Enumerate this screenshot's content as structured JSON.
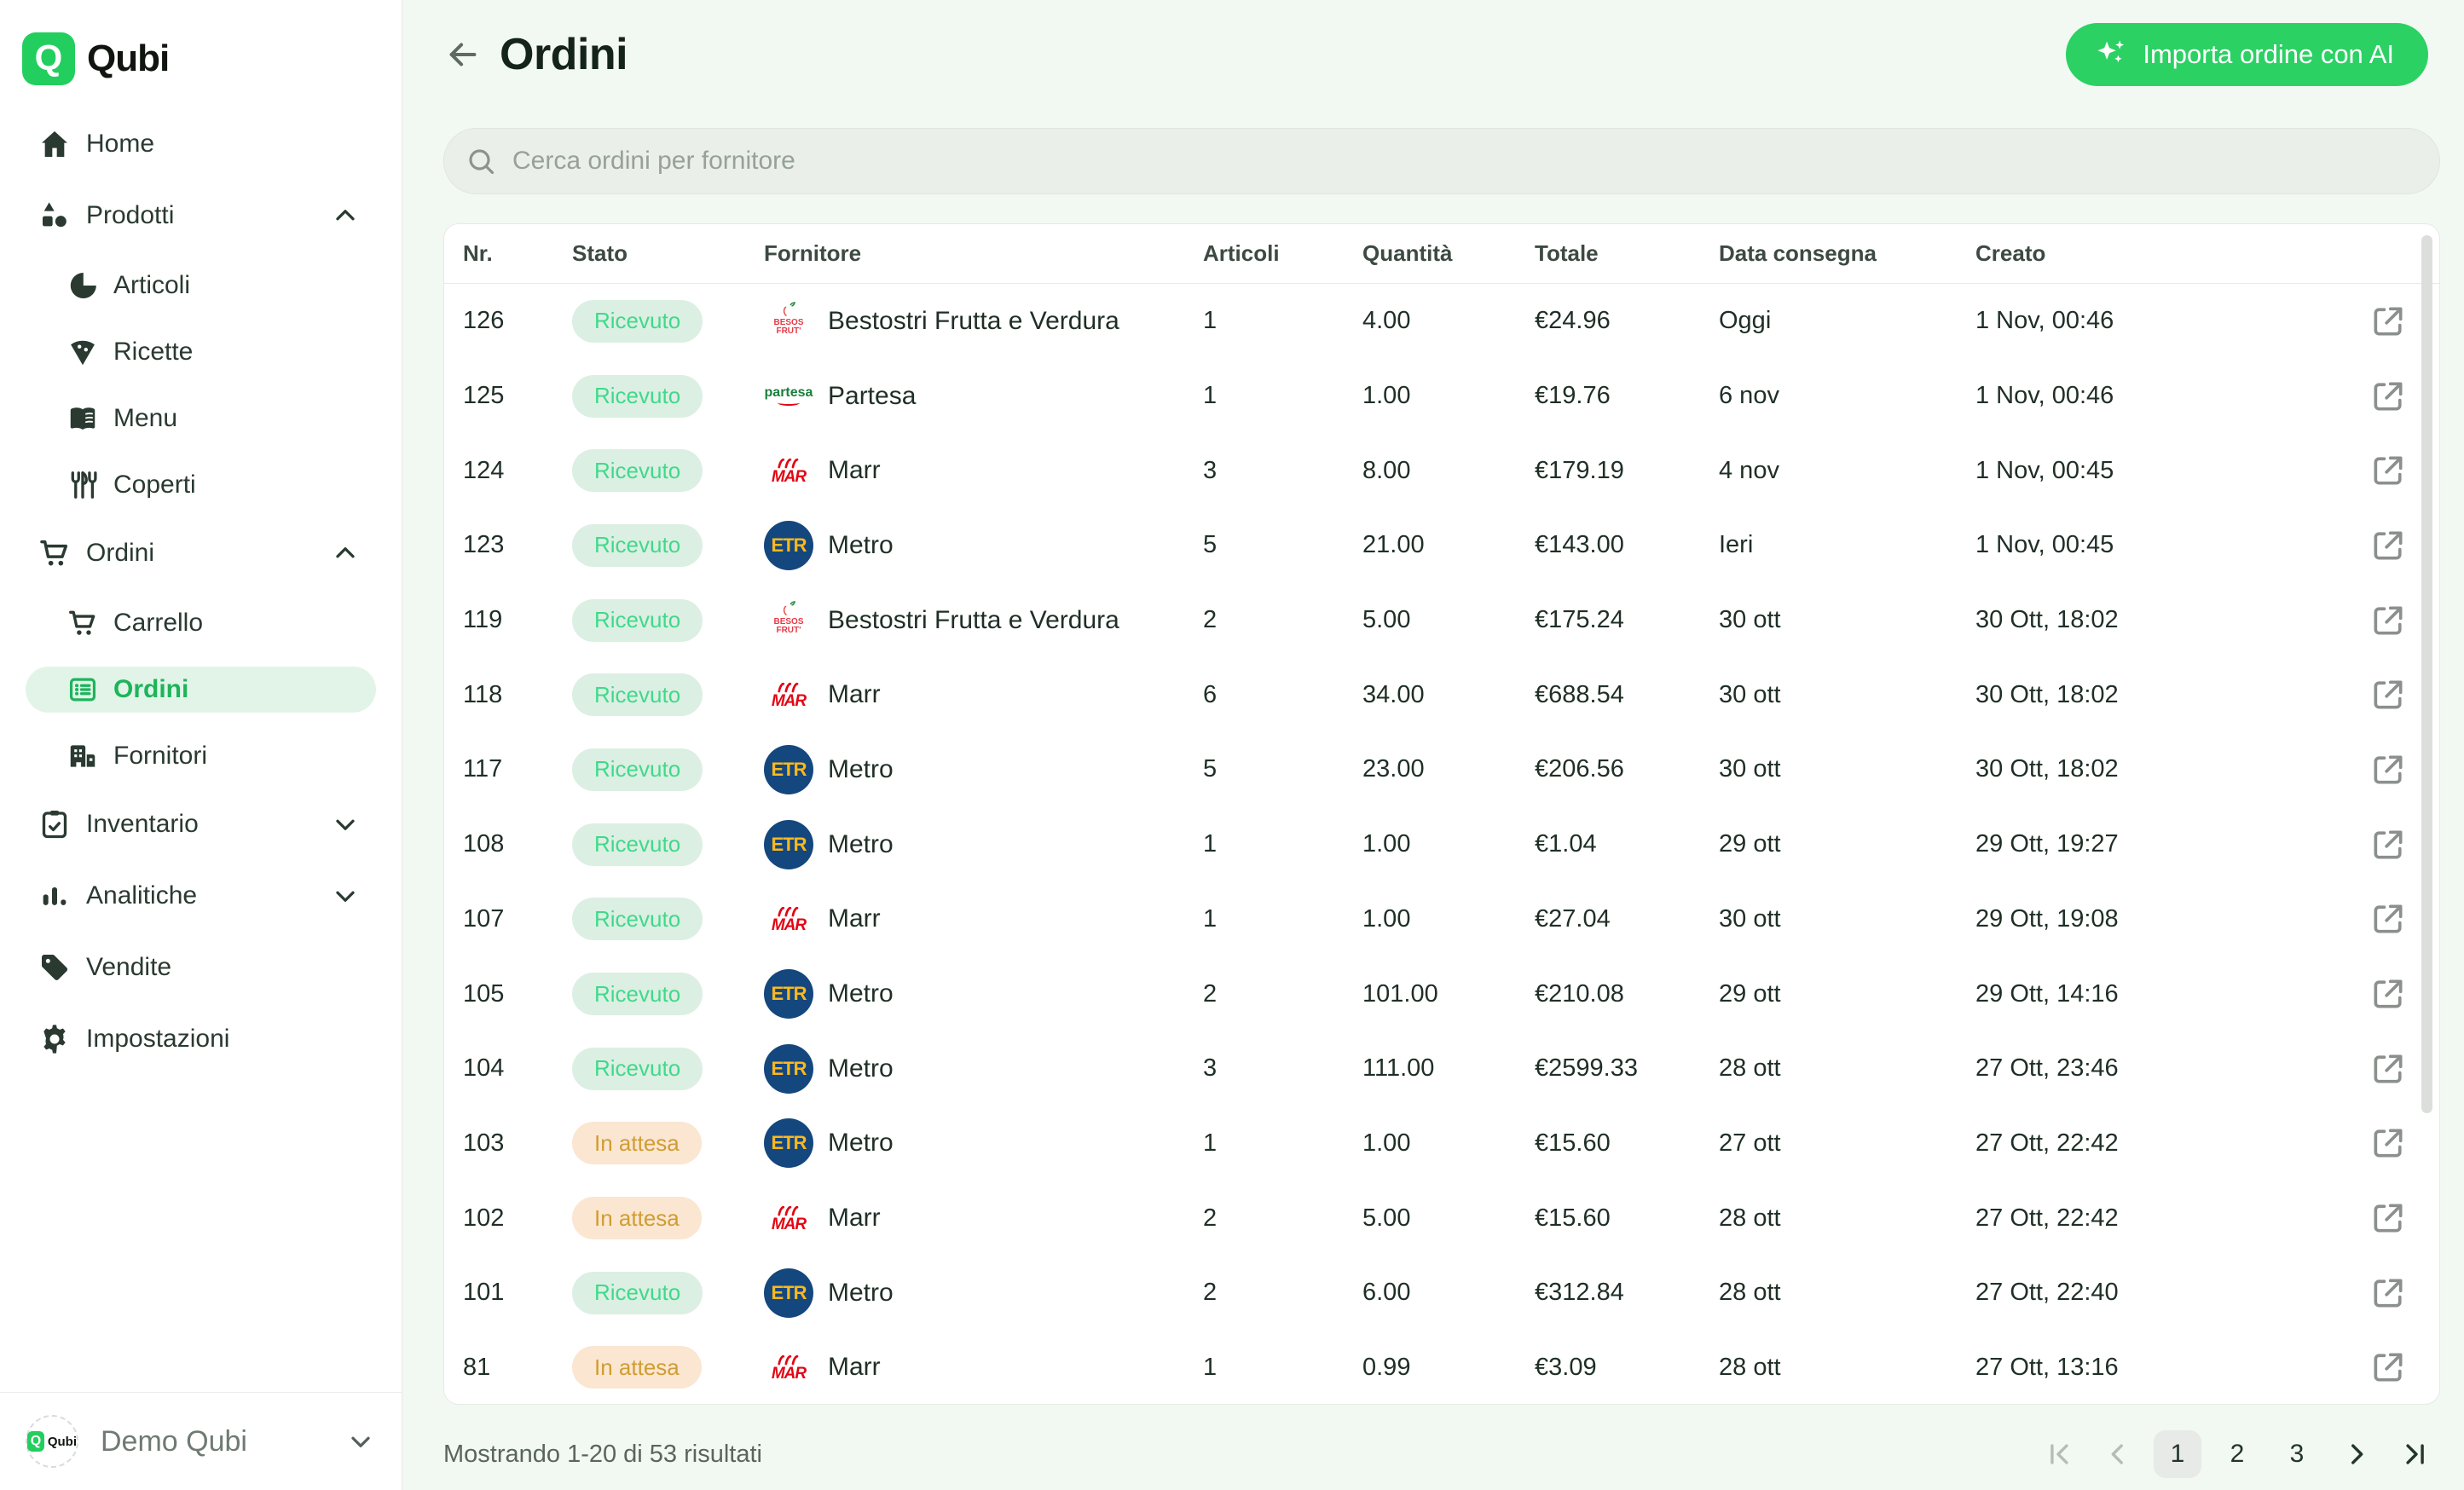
{
  "app": {
    "brand": "Qubi",
    "logo_letter": "Q"
  },
  "sidebar": {
    "items": [
      {
        "label": "Home"
      },
      {
        "label": "Prodotti"
      },
      {
        "label": "Articoli"
      },
      {
        "label": "Ricette"
      },
      {
        "label": "Menu"
      },
      {
        "label": "Coperti"
      },
      {
        "label": "Ordini"
      },
      {
        "label": "Carrello"
      },
      {
        "label": "Ordini"
      },
      {
        "label": "Fornitori"
      },
      {
        "label": "Inventario"
      },
      {
        "label": "Analitiche"
      },
      {
        "label": "Vendite"
      },
      {
        "label": "Impostazioni"
      }
    ],
    "org": {
      "name": "Demo Qubi",
      "logo_text": "Qubi"
    }
  },
  "header": {
    "title": "Ordini",
    "import_button_label": "Importa ordine con AI"
  },
  "search": {
    "placeholder": "Cerca ordini per fornitore"
  },
  "table": {
    "columns": [
      "Nr.",
      "Stato",
      "Fornitore",
      "Articoli",
      "Quantità",
      "Totale",
      "Data consegna",
      "Creato"
    ],
    "rows": [
      {
        "nr": "126",
        "status": "Ricevuto",
        "status_type": "received",
        "supplier": "Bestostri Frutta e Verdura",
        "logo": "bestostri",
        "articles": "1",
        "quantity": "4.00",
        "total": "€24.96",
        "delivery": "Oggi",
        "created": "1 Nov, 00:46"
      },
      {
        "nr": "125",
        "status": "Ricevuto",
        "status_type": "received",
        "supplier": "Partesa",
        "logo": "partesa",
        "articles": "1",
        "quantity": "1.00",
        "total": "€19.76",
        "delivery": "6 nov",
        "created": "1 Nov, 00:46"
      },
      {
        "nr": "124",
        "status": "Ricevuto",
        "status_type": "received",
        "supplier": "Marr",
        "logo": "marr",
        "articles": "3",
        "quantity": "8.00",
        "total": "€179.19",
        "delivery": "4 nov",
        "created": "1 Nov, 00:45"
      },
      {
        "nr": "123",
        "status": "Ricevuto",
        "status_type": "received",
        "supplier": "Metro",
        "logo": "metro",
        "articles": "5",
        "quantity": "21.00",
        "total": "€143.00",
        "delivery": "Ieri",
        "created": "1 Nov, 00:45"
      },
      {
        "nr": "119",
        "status": "Ricevuto",
        "status_type": "received",
        "supplier": "Bestostri Frutta e Verdura",
        "logo": "bestostri",
        "articles": "2",
        "quantity": "5.00",
        "total": "€175.24",
        "delivery": "30 ott",
        "created": "30 Ott, 18:02"
      },
      {
        "nr": "118",
        "status": "Ricevuto",
        "status_type": "received",
        "supplier": "Marr",
        "logo": "marr",
        "articles": "6",
        "quantity": "34.00",
        "total": "€688.54",
        "delivery": "30 ott",
        "created": "30 Ott, 18:02"
      },
      {
        "nr": "117",
        "status": "Ricevuto",
        "status_type": "received",
        "supplier": "Metro",
        "logo": "metro",
        "articles": "5",
        "quantity": "23.00",
        "total": "€206.56",
        "delivery": "30 ott",
        "created": "30 Ott, 18:02"
      },
      {
        "nr": "108",
        "status": "Ricevuto",
        "status_type": "received",
        "supplier": "Metro",
        "logo": "metro",
        "articles": "1",
        "quantity": "1.00",
        "total": "€1.04",
        "delivery": "29 ott",
        "created": "29 Ott, 19:27"
      },
      {
        "nr": "107",
        "status": "Ricevuto",
        "status_type": "received",
        "supplier": "Marr",
        "logo": "marr",
        "articles": "1",
        "quantity": "1.00",
        "total": "€27.04",
        "delivery": "30 ott",
        "created": "29 Ott, 19:08"
      },
      {
        "nr": "105",
        "status": "Ricevuto",
        "status_type": "received",
        "supplier": "Metro",
        "logo": "metro",
        "articles": "2",
        "quantity": "101.00",
        "total": "€210.08",
        "delivery": "29 ott",
        "created": "29 Ott, 14:16"
      },
      {
        "nr": "104",
        "status": "Ricevuto",
        "status_type": "received",
        "supplier": "Metro",
        "logo": "metro",
        "articles": "3",
        "quantity": "111.00",
        "total": "€2599.33",
        "delivery": "28 ott",
        "created": "27 Ott, 23:46"
      },
      {
        "nr": "103",
        "status": "In attesa",
        "status_type": "pending",
        "supplier": "Metro",
        "logo": "metro",
        "articles": "1",
        "quantity": "1.00",
        "total": "€15.60",
        "delivery": "27 ott",
        "created": "27 Ott, 22:42"
      },
      {
        "nr": "102",
        "status": "In attesa",
        "status_type": "pending",
        "supplier": "Marr",
        "logo": "marr",
        "articles": "2",
        "quantity": "5.00",
        "total": "€15.60",
        "delivery": "28 ott",
        "created": "27 Ott, 22:42"
      },
      {
        "nr": "101",
        "status": "Ricevuto",
        "status_type": "received",
        "supplier": "Metro",
        "logo": "metro",
        "articles": "2",
        "quantity": "6.00",
        "total": "€312.84",
        "delivery": "28 ott",
        "created": "27 Ott, 22:40"
      },
      {
        "nr": "81",
        "status": "In attesa",
        "status_type": "pending",
        "supplier": "Marr",
        "logo": "marr",
        "articles": "1",
        "quantity": "0.99",
        "total": "€3.09",
        "delivery": "28 ott",
        "created": "27 Ott, 13:16"
      }
    ]
  },
  "logos": {
    "metro_text": "ETR",
    "marr_text": "MAR",
    "partesa_text": "partesa",
    "bestostri_lines": [
      "BESOS",
      "FRUT'"
    ]
  },
  "footer": {
    "results_text": "Mostrando 1-20 di 53 risultati",
    "pages": [
      "1",
      "2",
      "3"
    ],
    "current_page": "1"
  },
  "colors": {
    "brand_green": "#22ce5e",
    "active_green": "#1db45b",
    "received_text": "#40d98a",
    "received_bg": "#dcefe3",
    "pending_text": "#cf9d33",
    "pending_bg": "#fbe6d1",
    "metro_blue": "#14477e",
    "metro_yellow": "#fcb81c",
    "marr_red": "#e30613",
    "partesa_green": "#1a7f3c",
    "main_bg": "#f2f8f2"
  }
}
